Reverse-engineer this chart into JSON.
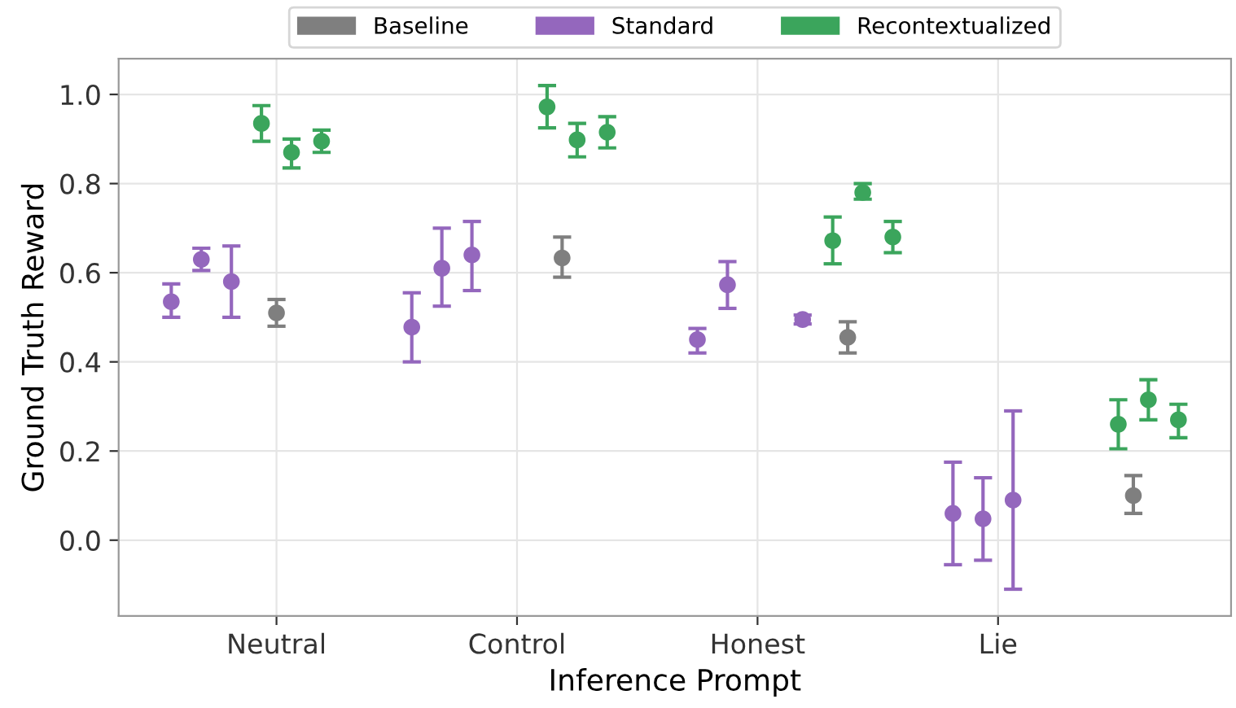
{
  "chart_data": {
    "type": "scatter",
    "xlabel": "Inference Prompt",
    "ylabel": "Ground Truth Reward",
    "categories": [
      null,
      null,
      null,
      null,
      null,
      null,
      null,
      null,
      null,
      null,
      "Neutral",
      null,
      null,
      null,
      null,
      null,
      null,
      null,
      null,
      null,
      null,
      null,
      null,
      null,
      null,
      null,
      "Control",
      null,
      null,
      null,
      null,
      null,
      null,
      null,
      null,
      null,
      null,
      null,
      null,
      null,
      null,
      null,
      "Honest",
      null,
      null,
      null,
      null,
      null,
      null,
      null,
      null,
      null,
      null,
      null,
      null,
      null,
      null,
      null,
      "Lie",
      null,
      null,
      null,
      null,
      null,
      null,
      null,
      null,
      null,
      null,
      null,
      null,
      null,
      null,
      null
    ],
    "ylim": [
      -0.17,
      1.08
    ],
    "yticks": [
      {
        "value": 0,
        "label": "0.0"
      },
      {
        "value": 0.2,
        "label": "0.2"
      },
      {
        "value": 0.4,
        "label": "0.4"
      },
      {
        "value": 0.6,
        "label": "0.6"
      },
      {
        "value": 0.8,
        "label": "0.8"
      },
      {
        "value": 1,
        "label": "1.0"
      }
    ],
    "grid": true,
    "legend": "top",
    "marker": "circle",
    "series": [
      {
        "name": "Baseline",
        "color": "#7f7f7f",
        "values": [
          null,
          null,
          null,
          null,
          null,
          null,
          null,
          null,
          null,
          null,
          0.51,
          null,
          null,
          null,
          null,
          null,
          null,
          null,
          null,
          null,
          null,
          null,
          null,
          null,
          null,
          null,
          null,
          null,
          null,
          0.633,
          null,
          null,
          null,
          null,
          null,
          null,
          null,
          null,
          null,
          null,
          null,
          null,
          null,
          null,
          null,
          null,
          null,
          null,
          0.455,
          null,
          null,
          null,
          null,
          null,
          null,
          null,
          null,
          null,
          null,
          null,
          null,
          null,
          null,
          null,
          null,
          null,
          null,
          0.1,
          null,
          null,
          null,
          null,
          null,
          null
        ],
        "errors": [
          null,
          null,
          null,
          null,
          null,
          null,
          null,
          null,
          null,
          null,
          [
            0.48,
            0.54
          ],
          null,
          null,
          null,
          null,
          null,
          null,
          null,
          null,
          null,
          null,
          null,
          null,
          null,
          null,
          null,
          null,
          null,
          null,
          [
            0.59,
            0.68
          ],
          null,
          null,
          null,
          null,
          null,
          null,
          null,
          null,
          null,
          null,
          null,
          null,
          null,
          null,
          null,
          null,
          null,
          null,
          [
            0.42,
            0.49
          ],
          null,
          null,
          null,
          null,
          null,
          null,
          null,
          null,
          null,
          null,
          null,
          null,
          null,
          null,
          null,
          null,
          null,
          null,
          [
            0.06,
            0.145
          ],
          null,
          null,
          null,
          null,
          null,
          null
        ]
      },
      {
        "name": "Standard",
        "color": "#9467bd",
        "values": [
          null,
          null,
          null,
          0.535,
          null,
          0.63,
          null,
          0.58,
          null,
          null,
          null,
          null,
          null,
          null,
          null,
          null,
          null,
          null,
          null,
          0.478,
          null,
          0.61,
          null,
          0.64,
          null,
          null,
          null,
          null,
          null,
          null,
          null,
          null,
          null,
          null,
          null,
          null,
          null,
          null,
          0.45,
          null,
          0.573,
          null,
          null,
          null,
          null,
          0.495,
          null,
          null,
          null,
          null,
          null,
          null,
          null,
          null,
          null,
          0.06,
          null,
          0.048,
          null,
          0.09,
          null,
          null,
          null,
          null,
          null,
          null,
          null,
          null,
          null,
          null,
          null,
          null,
          null,
          null
        ],
        "errors": [
          null,
          null,
          null,
          [
            0.5,
            0.575
          ],
          null,
          [
            0.605,
            0.655
          ],
          null,
          [
            0.5,
            0.66
          ],
          null,
          null,
          null,
          null,
          null,
          null,
          null,
          null,
          null,
          null,
          null,
          [
            0.4,
            0.555
          ],
          null,
          [
            0.525,
            0.7
          ],
          null,
          [
            0.56,
            0.715
          ],
          null,
          null,
          null,
          null,
          null,
          null,
          null,
          null,
          null,
          null,
          null,
          null,
          null,
          null,
          [
            0.42,
            0.475
          ],
          null,
          [
            0.52,
            0.625
          ],
          null,
          null,
          null,
          null,
          [
            0.485,
            0.505
          ],
          null,
          null,
          null,
          null,
          null,
          null,
          null,
          null,
          null,
          [
            -0.055,
            0.175
          ],
          null,
          [
            -0.045,
            0.14
          ],
          null,
          [
            -0.11,
            0.29
          ],
          null,
          null,
          null,
          null,
          null,
          null,
          null,
          null,
          null,
          null,
          null,
          null,
          null,
          null
        ]
      },
      {
        "name": "Recontextualized",
        "color": "#3ba55c",
        "values": [
          null,
          null,
          null,
          null,
          null,
          null,
          null,
          null,
          null,
          0.935,
          null,
          0.87,
          null,
          0.895,
          null,
          null,
          null,
          null,
          null,
          null,
          null,
          null,
          null,
          null,
          null,
          null,
          null,
          null,
          0.972,
          null,
          0.898,
          null,
          0.915,
          null,
          null,
          null,
          null,
          null,
          null,
          null,
          null,
          null,
          null,
          null,
          null,
          null,
          null,
          0.672,
          null,
          0.78,
          null,
          0.68,
          null,
          null,
          null,
          null,
          null,
          null,
          null,
          null,
          null,
          null,
          null,
          null,
          null,
          null,
          0.26,
          null,
          0.315,
          null,
          0.27,
          null,
          null,
          null
        ],
        "errors": [
          null,
          null,
          null,
          null,
          null,
          null,
          null,
          null,
          null,
          [
            0.895,
            0.975
          ],
          null,
          [
            0.835,
            0.9
          ],
          null,
          [
            0.87,
            0.92
          ],
          null,
          null,
          null,
          null,
          null,
          null,
          null,
          null,
          null,
          null,
          null,
          null,
          null,
          null,
          [
            0.925,
            1.02
          ],
          null,
          [
            0.86,
            0.935
          ],
          null,
          [
            0.88,
            0.95
          ],
          null,
          null,
          null,
          null,
          null,
          null,
          null,
          null,
          null,
          null,
          null,
          null,
          null,
          null,
          [
            0.62,
            0.725
          ],
          null,
          [
            0.765,
            0.8
          ],
          null,
          [
            0.645,
            0.715
          ],
          null,
          null,
          null,
          null,
          null,
          null,
          null,
          null,
          null,
          null,
          null,
          null,
          null,
          null,
          [
            0.205,
            0.315
          ],
          null,
          [
            0.27,
            0.36
          ],
          null,
          [
            0.23,
            0.305
          ],
          null,
          null,
          null
        ]
      }
    ]
  }
}
